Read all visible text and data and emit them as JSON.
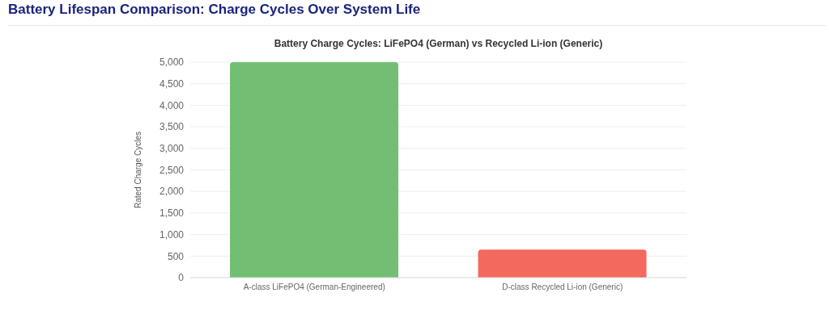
{
  "chart_data": {
    "type": "bar",
    "title": "Battery Lifespan Comparison: Charge Cycles Over System Life",
    "subtitle": "Battery Charge Cycles: LiFePO4 (German) vs Recycled Li-ion (Generic)",
    "ylabel": "Rated Charge Cycles",
    "categories": [
      "A-class LiFePO4 (German-Engineered)",
      "D-class Recycled Li-ion (Generic)"
    ],
    "values": [
      5000,
      650
    ],
    "colors": [
      "#72bf73",
      "#f4695e"
    ],
    "ylim": [
      0,
      5000
    ],
    "yticks": [
      {
        "value": 0,
        "label": "0"
      },
      {
        "value": 500,
        "label": "500"
      },
      {
        "value": 1000,
        "label": "1,000"
      },
      {
        "value": 1500,
        "label": "1,500"
      },
      {
        "value": 2000,
        "label": "2,000"
      },
      {
        "value": 2500,
        "label": "2,500"
      },
      {
        "value": 3000,
        "label": "3,000"
      },
      {
        "value": 3500,
        "label": "3,500"
      },
      {
        "value": 4000,
        "label": "4,000"
      },
      {
        "value": 4500,
        "label": "4,500"
      },
      {
        "value": 5000,
        "label": "5,000"
      }
    ],
    "grid": "y",
    "legend": false
  }
}
